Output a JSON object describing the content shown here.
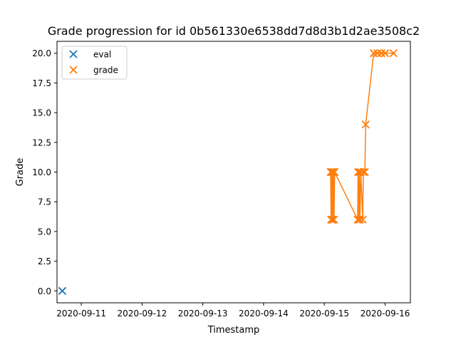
{
  "chart_data": {
    "type": "scatter",
    "title": "Grade progression for id 0b561330e6538dd7d8d3b1d2ae3508c2",
    "xlabel": "Timestamp",
    "ylabel": "Grade",
    "xlim": [
      "2020-09-10 14:24",
      "2020-09-16 10:00"
    ],
    "ylim": [
      -1.0,
      21.0
    ],
    "grid": false,
    "legend_position": "upper left",
    "x_ticks": [
      "2020-09-11",
      "2020-09-12",
      "2020-09-13",
      "2020-09-14",
      "2020-09-15",
      "2020-09-16"
    ],
    "y_ticks": [
      "0.0",
      "2.5",
      "5.0",
      "7.5",
      "10.0",
      "12.5",
      "15.0",
      "17.5",
      "20.0"
    ],
    "series": [
      {
        "name": "eval",
        "marker": "x",
        "line": false,
        "color": "#1f77b4",
        "points": [
          {
            "x": "2020-09-10 16:30",
            "y": 0.0
          }
        ]
      },
      {
        "name": "grade",
        "marker": "x",
        "line": true,
        "color": "#ff7f0e",
        "points": [
          {
            "x": "2020-09-15 02:30",
            "y": 10.0
          },
          {
            "x": "2020-09-15 02:40",
            "y": 6.0
          },
          {
            "x": "2020-09-15 02:50",
            "y": 10.0
          },
          {
            "x": "2020-09-15 03:00",
            "y": 6.0
          },
          {
            "x": "2020-09-15 03:10",
            "y": 10.0
          },
          {
            "x": "2020-09-15 03:20",
            "y": 6.0
          },
          {
            "x": "2020-09-15 03:35",
            "y": 10.0
          },
          {
            "x": "2020-09-15 03:50",
            "y": 6.0
          },
          {
            "x": "2020-09-15 04:05",
            "y": 10.0
          },
          {
            "x": "2020-09-15 13:10",
            "y": 6.0
          },
          {
            "x": "2020-09-15 13:20",
            "y": 10.0
          },
          {
            "x": "2020-09-15 13:35",
            "y": 6.0
          },
          {
            "x": "2020-09-15 13:50",
            "y": 10.0
          },
          {
            "x": "2020-09-15 14:05",
            "y": 6.0
          },
          {
            "x": "2020-09-15 14:25",
            "y": 10.0
          },
          {
            "x": "2020-09-15 15:10",
            "y": 6.0
          },
          {
            "x": "2020-09-15 15:25",
            "y": 10.0
          },
          {
            "x": "2020-09-15 16:00",
            "y": 10.0
          },
          {
            "x": "2020-09-15 16:20",
            "y": 14.0
          },
          {
            "x": "2020-09-15 19:30",
            "y": 20.0
          },
          {
            "x": "2020-09-15 21:00",
            "y": 20.0
          },
          {
            "x": "2020-09-15 22:30",
            "y": 20.0
          },
          {
            "x": "2020-09-16 00:00",
            "y": 20.0
          },
          {
            "x": "2020-09-16 03:20",
            "y": 20.0
          }
        ]
      }
    ]
  }
}
